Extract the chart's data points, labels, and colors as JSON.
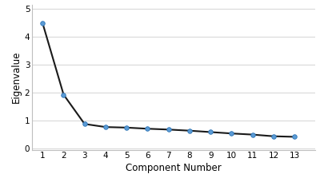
{
  "x": [
    1,
    2,
    3,
    4,
    5,
    6,
    7,
    8,
    9,
    10,
    11,
    12,
    13
  ],
  "y": [
    4.48,
    1.92,
    0.87,
    0.76,
    0.74,
    0.7,
    0.67,
    0.63,
    0.58,
    0.53,
    0.49,
    0.43,
    0.41
  ],
  "xlabel": "Component Number",
  "ylabel": "Eigenvalue",
  "xlim": [
    0.5,
    14.0
  ],
  "ylim": [
    -0.05,
    5.15
  ],
  "yticks": [
    0,
    1,
    2,
    3,
    4,
    5
  ],
  "xticks": [
    1,
    2,
    3,
    4,
    5,
    6,
    7,
    8,
    9,
    10,
    11,
    12,
    13
  ],
  "line_color": "#1a1a1a",
  "marker_facecolor": "#5b9bd5",
  "marker_edgecolor": "#2e75b6",
  "fig_bg_color": "#ffffff",
  "plot_bg_color": "#ffffff",
  "grid_color": "#d9d9d9",
  "spine_color": "#bfbfbf",
  "line_width": 1.5,
  "marker_size": 4,
  "xlabel_fontsize": 8.5,
  "ylabel_fontsize": 8.5,
  "tick_fontsize": 7.5
}
